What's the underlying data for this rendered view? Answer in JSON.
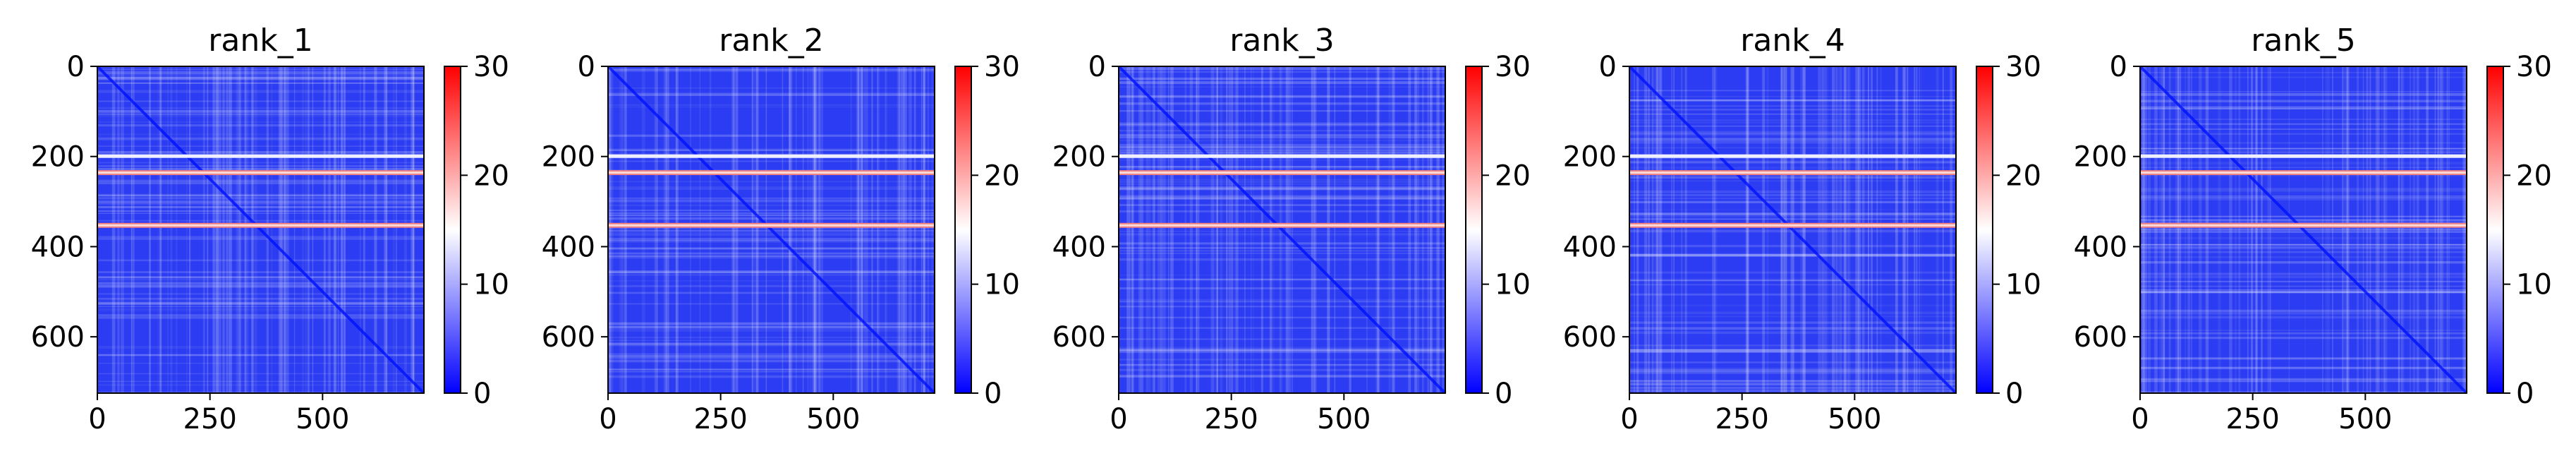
{
  "chart_data": [
    {
      "type": "heatmap",
      "title": "rank_1",
      "x_ticks": [
        0,
        250,
        500
      ],
      "y_ticks": [
        0,
        200,
        400,
        600
      ],
      "colorbar_ticks": [
        0,
        10,
        20,
        30
      ],
      "xlim": [
        0,
        725
      ],
      "ylim": [
        725,
        0
      ],
      "vmin": 0,
      "vmax": 30,
      "colormap": [
        "#0000ff",
        "#ffffff",
        "#ff0000"
      ],
      "band_rows": [
        200,
        235,
        352
      ],
      "diagonal_rows": [
        0,
        725
      ]
    },
    {
      "type": "heatmap",
      "title": "rank_2",
      "x_ticks": [
        0,
        250,
        500
      ],
      "y_ticks": [
        0,
        200,
        400,
        600
      ],
      "colorbar_ticks": [
        0,
        10,
        20,
        30
      ],
      "xlim": [
        0,
        725
      ],
      "ylim": [
        725,
        0
      ],
      "vmin": 0,
      "vmax": 30,
      "colormap": [
        "#0000ff",
        "#ffffff",
        "#ff0000"
      ],
      "band_rows": [
        200,
        235,
        352
      ],
      "diagonal_rows": [
        0,
        725
      ]
    },
    {
      "type": "heatmap",
      "title": "rank_3",
      "x_ticks": [
        0,
        250,
        500
      ],
      "y_ticks": [
        0,
        200,
        400,
        600
      ],
      "colorbar_ticks": [
        0,
        10,
        20,
        30
      ],
      "xlim": [
        0,
        725
      ],
      "ylim": [
        725,
        0
      ],
      "vmin": 0,
      "vmax": 30,
      "colormap": [
        "#0000ff",
        "#ffffff",
        "#ff0000"
      ],
      "band_rows": [
        200,
        235,
        352
      ],
      "diagonal_rows": [
        0,
        725
      ]
    },
    {
      "type": "heatmap",
      "title": "rank_4",
      "x_ticks": [
        0,
        250,
        500
      ],
      "y_ticks": [
        0,
        200,
        400,
        600
      ],
      "colorbar_ticks": [
        0,
        10,
        20,
        30
      ],
      "xlim": [
        0,
        725
      ],
      "ylim": [
        725,
        0
      ],
      "vmin": 0,
      "vmax": 30,
      "colormap": [
        "#0000ff",
        "#ffffff",
        "#ff0000"
      ],
      "band_rows": [
        200,
        235,
        352
      ],
      "diagonal_rows": [
        0,
        725
      ]
    },
    {
      "type": "heatmap",
      "title": "rank_5",
      "x_ticks": [
        0,
        250,
        500
      ],
      "y_ticks": [
        0,
        200,
        400,
        600
      ],
      "colorbar_ticks": [
        0,
        10,
        20,
        30
      ],
      "xlim": [
        0,
        725
      ],
      "ylim": [
        725,
        0
      ],
      "vmin": 0,
      "vmax": 30,
      "colormap": [
        "#0000ff",
        "#ffffff",
        "#ff0000"
      ],
      "band_rows": [
        200,
        235,
        352
      ],
      "diagonal_rows": [
        0,
        725
      ]
    }
  ]
}
